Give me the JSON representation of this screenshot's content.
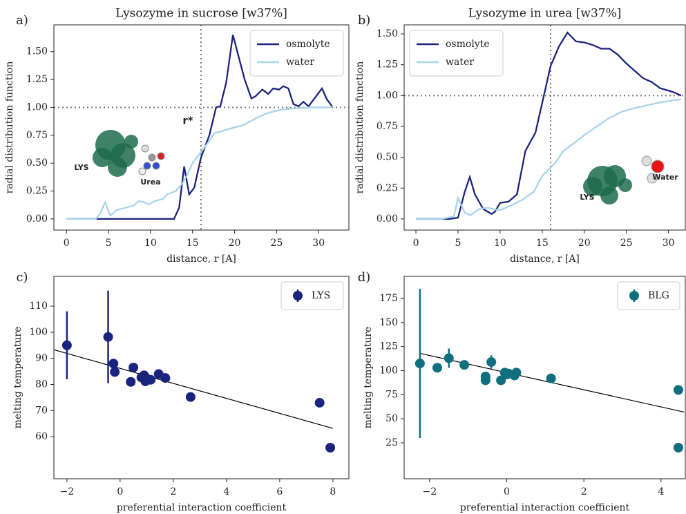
{
  "chart_data": [
    {
      "type": "line",
      "panel_label": "a)",
      "title": "Lysozyme in sucrose [w37%]",
      "xlabel": "distance, r [A]",
      "ylabel": "radial distribution function",
      "xlim": [
        -1.5,
        33.6
      ],
      "ylim": [
        -0.1,
        1.74
      ],
      "xticks": [
        0,
        5,
        10,
        15,
        20,
        25,
        30
      ],
      "yticks": [
        {
          "value": 0,
          "label": "0.00"
        },
        {
          "value": 0.25,
          "label": "0.25"
        },
        {
          "value": 0.5,
          "label": "0.50"
        },
        {
          "value": 0.75,
          "label": "0.75"
        },
        {
          "value": 1,
          "label": "1.00"
        },
        {
          "value": 1.25,
          "label": "1.25"
        },
        {
          "value": 1.5,
          "label": "1.50"
        }
      ],
      "vline": 16,
      "hline": 1,
      "legend": "upper right",
      "annotations": [
        "r*",
        "LYS",
        "Urea"
      ],
      "series": [
        {
          "name": "osmolyte",
          "color": "#1a237e",
          "x": [
            0,
            2,
            4,
            6,
            8,
            10,
            12,
            12.8,
            13.4,
            14,
            14.6,
            15.2,
            16,
            17,
            17.8,
            18.3,
            19,
            19.8,
            20.5,
            21.2,
            22,
            22.5,
            23.3,
            24,
            24.6,
            25.3,
            25.8,
            26.4,
            27,
            27.6,
            28.2,
            28.8,
            29.5,
            30.4,
            31,
            31.6
          ],
          "values": [
            0,
            0,
            0,
            0,
            0,
            0,
            0,
            0,
            0.1,
            0.47,
            0.22,
            0.28,
            0.55,
            0.75,
            1.0,
            1.01,
            1.22,
            1.65,
            1.45,
            1.25,
            1.08,
            1.1,
            1.16,
            1.12,
            1.17,
            1.16,
            1.19,
            1.17,
            1.03,
            1.01,
            1.05,
            1.01,
            1.08,
            1.17,
            1.07,
            1.01
          ]
        },
        {
          "name": "water",
          "color": "#a8d4ea",
          "x": [
            0,
            2,
            3.5,
            4,
            4.6,
            5.2,
            6,
            7,
            8,
            8.6,
            9.2,
            9.8,
            10.5,
            11.5,
            12,
            13,
            13.8,
            14.4,
            15,
            16,
            17,
            17.6,
            18.2,
            19,
            20,
            21,
            22,
            23,
            24,
            25.5,
            27,
            29,
            31.5
          ],
          "values": [
            0,
            0,
            0,
            0.05,
            0.15,
            0.03,
            0.08,
            0.1,
            0.12,
            0.16,
            0.15,
            0.13,
            0.16,
            0.18,
            0.22,
            0.25,
            0.32,
            0.4,
            0.5,
            0.6,
            0.7,
            0.77,
            0.78,
            0.8,
            0.82,
            0.84,
            0.88,
            0.92,
            0.95,
            0.98,
            0.99,
            1.0,
            1.0
          ]
        }
      ]
    },
    {
      "type": "line",
      "panel_label": "b)",
      "title": "Lysozyme in urea [w37%]",
      "xlabel": "distance, r [A]",
      "ylabel": "radial distribution function",
      "xlim": [
        -1.4,
        32.0
      ],
      "ylim": [
        -0.09,
        1.573
      ],
      "xticks": [
        0,
        5,
        10,
        15,
        20,
        25,
        30
      ],
      "yticks": [
        {
          "value": 0,
          "label": "0.00"
        },
        {
          "value": 0.25,
          "label": "0.25"
        },
        {
          "value": 0.5,
          "label": "0.50"
        },
        {
          "value": 0.75,
          "label": "0.75"
        },
        {
          "value": 1,
          "label": "1.00"
        },
        {
          "value": 1.25,
          "label": "1.25"
        },
        {
          "value": 1.5,
          "label": "1.50"
        }
      ],
      "vline": 16,
      "hline": 1,
      "legend": "upper left",
      "annotations": [
        "LYS",
        "Water"
      ],
      "series": [
        {
          "name": "osmolyte",
          "color": "#1a237e",
          "x": [
            0,
            2,
            4,
            5,
            5.8,
            6.4,
            7,
            8,
            9,
            9.4,
            10,
            11,
            12,
            13,
            14.2,
            16,
            17,
            18,
            19,
            20,
            21,
            22,
            23,
            24,
            25,
            26,
            27,
            28,
            29,
            30.5,
            31.5
          ],
          "values": [
            0,
            0,
            0,
            0.01,
            0.22,
            0.34,
            0.2,
            0.08,
            0.04,
            0.06,
            0.13,
            0.14,
            0.2,
            0.55,
            0.7,
            1.24,
            1.4,
            1.51,
            1.44,
            1.43,
            1.41,
            1.38,
            1.38,
            1.33,
            1.26,
            1.2,
            1.14,
            1.11,
            1.06,
            1.03,
            1.0
          ]
        },
        {
          "name": "water",
          "color": "#a8d4ea",
          "x": [
            0,
            3,
            4.5,
            5,
            5.8,
            6.5,
            7.5,
            8.5,
            10,
            11,
            12.5,
            14,
            15,
            16.5,
            17.5,
            18.5,
            20,
            21.5,
            23,
            24.5,
            26,
            28,
            29.5,
            31.5
          ],
          "values": [
            0,
            0,
            0.02,
            0.17,
            0.05,
            0.03,
            0.08,
            0.09,
            0.07,
            0.1,
            0.15,
            0.22,
            0.35,
            0.45,
            0.55,
            0.6,
            0.68,
            0.75,
            0.82,
            0.87,
            0.9,
            0.93,
            0.95,
            0.97
          ]
        }
      ]
    },
    {
      "type": "errorbar",
      "panel_label": "c)",
      "xlabel": "preferential interaction coefficient",
      "ylabel": "melting temperature",
      "xlim": [
        -2.49,
        8.6
      ],
      "ylim": [
        43.9,
        121.4
      ],
      "xticks": [
        {
          "value": -2,
          "label": "−2"
        },
        0,
        2,
        4,
        6,
        8
      ],
      "yticks": [
        60,
        70,
        80,
        90,
        100,
        110
      ],
      "legend": "upper right",
      "series": [
        {
          "name": "LYS",
          "color": "#1a237e",
          "x": [
            -2,
            -0.45,
            -0.25,
            -0.2,
            0.4,
            0.5,
            0.8,
            0.9,
            0.95,
            1.05,
            1.15,
            1.45,
            1.7,
            2.65,
            7.5,
            7.9
          ],
          "values": [
            95,
            98.2,
            88,
            84.8,
            81,
            86.5,
            82.7,
            83.5,
            81.2,
            82,
            81.8,
            84,
            82.5,
            75.2,
            73,
            55.8
          ],
          "errors": [
            13,
            17.7,
            0,
            0,
            0,
            0,
            0,
            0,
            0,
            0,
            0,
            0,
            0,
            0,
            0,
            0
          ]
        }
      ],
      "fit": {
        "color": "#000000",
        "x": [
          -2.49,
          8.0
        ],
        "values": [
          93.3,
          63.2
        ]
      }
    },
    {
      "type": "errorbar",
      "panel_label": "d)",
      "xlabel": "preferential interaction coefficient",
      "ylabel": "melting temperature",
      "xlim": [
        -2.66,
        4.63
      ],
      "ylim": [
        -12.3,
        198
      ],
      "xticks": [
        {
          "value": -2,
          "label": "−2"
        },
        0,
        2,
        4
      ],
      "yticks": [
        25,
        50,
        75,
        100,
        125,
        150,
        175
      ],
      "legend": "upper right",
      "series": [
        {
          "name": "BLG",
          "color": "#0f6f7f",
          "x": [
            -2.25,
            -1.8,
            -1.5,
            -1.1,
            -0.55,
            -0.55,
            -0.4,
            -0.15,
            -0.05,
            0,
            0.05,
            0.2,
            0.25,
            1.15,
            4.45,
            4.45
          ],
          "values": [
            107.5,
            103,
            113,
            106,
            94,
            90,
            109,
            90,
            98,
            96,
            97,
            95,
            98,
            92,
            80,
            20
          ],
          "errors": [
            77.5,
            0,
            10,
            0,
            0,
            0,
            7,
            0,
            0,
            0,
            0,
            0,
            0,
            0,
            0,
            0
          ]
        }
      ],
      "fit": {
        "color": "#000000",
        "x": [
          -2.25,
          4.6
        ],
        "values": [
          118,
          57
        ]
      }
    }
  ]
}
